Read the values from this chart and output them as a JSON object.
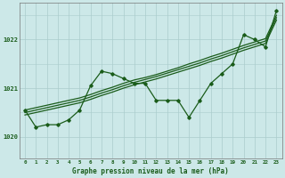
{
  "xlabel": "Graphe pression niveau de la mer (hPa)",
  "bg_color": "#cce8e8",
  "grid_color": "#aacccc",
  "line_color": "#1a5c1a",
  "x_values": [
    0,
    1,
    2,
    3,
    4,
    5,
    6,
    7,
    8,
    9,
    10,
    11,
    12,
    13,
    14,
    15,
    16,
    17,
    18,
    19,
    20,
    21,
    22,
    23
  ],
  "ylim": [
    1019.55,
    1022.75
  ],
  "yticks": [
    1020,
    1021,
    1022
  ],
  "series_linear1": [
    1020.55,
    1020.6,
    1020.65,
    1020.7,
    1020.75,
    1020.8,
    1020.87,
    1020.95,
    1021.02,
    1021.1,
    1021.17,
    1021.22,
    1021.28,
    1021.35,
    1021.42,
    1021.5,
    1021.57,
    1021.65,
    1021.72,
    1021.8,
    1021.88,
    1021.95,
    1022.02,
    1022.5
  ],
  "series_linear2": [
    1020.5,
    1020.55,
    1020.6,
    1020.65,
    1020.7,
    1020.75,
    1020.82,
    1020.9,
    1020.97,
    1021.05,
    1021.12,
    1021.18,
    1021.24,
    1021.31,
    1021.38,
    1021.45,
    1021.52,
    1021.6,
    1021.67,
    1021.75,
    1021.83,
    1021.9,
    1021.97,
    1022.45
  ],
  "series_linear3": [
    1020.45,
    1020.5,
    1020.55,
    1020.6,
    1020.65,
    1020.7,
    1020.77,
    1020.85,
    1020.92,
    1021.0,
    1021.07,
    1021.13,
    1021.19,
    1021.26,
    1021.33,
    1021.4,
    1021.47,
    1021.55,
    1021.62,
    1021.7,
    1021.78,
    1021.85,
    1021.92,
    1022.4
  ],
  "series_zigzag": [
    1020.55,
    1020.2,
    1020.25,
    1020.25,
    1020.35,
    1020.55,
    1021.05,
    1021.35,
    1021.3,
    1021.2,
    1021.1,
    1021.1,
    1020.75,
    1020.75,
    1020.75,
    1020.4,
    1020.75,
    1021.1,
    1021.3,
    1021.5,
    1022.1,
    1022.0,
    1021.85,
    1022.6
  ]
}
